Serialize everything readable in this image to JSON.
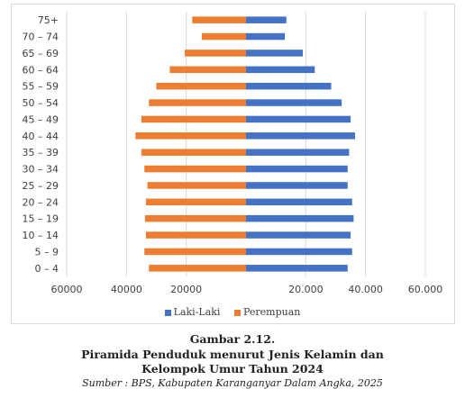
{
  "chart_data": {
    "type": "bar",
    "orientation": "horizontal-pyramid",
    "categories": [
      "0 – 4",
      "5 – 9",
      "10 – 14",
      "15 – 19",
      "20 – 24",
      "25 – 29",
      "30 – 34",
      "35 – 39",
      "40 – 44",
      "45 – 49",
      "50 – 54",
      "55 – 59",
      "60 – 64",
      "65 – 69",
      "70 – 74",
      "75+"
    ],
    "series": [
      {
        "name": "Laki-Laki",
        "color": "#4472C4",
        "values": [
          34000,
          35500,
          35000,
          36000,
          35500,
          34000,
          34000,
          34500,
          36500,
          35000,
          32000,
          28500,
          23000,
          19000,
          13000,
          13500
        ]
      },
      {
        "name": "Perempuan",
        "color": "#ED7D31",
        "values": [
          32500,
          34000,
          33500,
          33800,
          33500,
          33000,
          34000,
          35000,
          37000,
          35000,
          32500,
          30000,
          25500,
          20500,
          14800,
          18000
        ]
      }
    ],
    "xlim": [
      -60000,
      60000
    ],
    "x_ticks": [
      {
        "value": -60000,
        "label": "60000"
      },
      {
        "value": -40000,
        "label": "40000"
      },
      {
        "value": -20000,
        "label": "20000"
      },
      {
        "value": 20000,
        "label": "20.000"
      },
      {
        "value": 40000,
        "label": "40.000"
      },
      {
        "value": 60000,
        "label": "60.000"
      }
    ],
    "grid": true,
    "legend_position": "bottom"
  },
  "legend": {
    "male": "Laki-Laki",
    "female": "Perempuan",
    "male_color": "#4472C4",
    "female_color": "#ED7D31"
  },
  "caption": {
    "figure_no": "Gambar 2.12.",
    "line1": "Piramida Penduduk menurut Jenis Kelamin dan",
    "line2": "Kelompok Umur Tahun 2024",
    "source": "Sumber : BPS, Kabupaten Karanganyar Dalam Angka, 2025"
  }
}
